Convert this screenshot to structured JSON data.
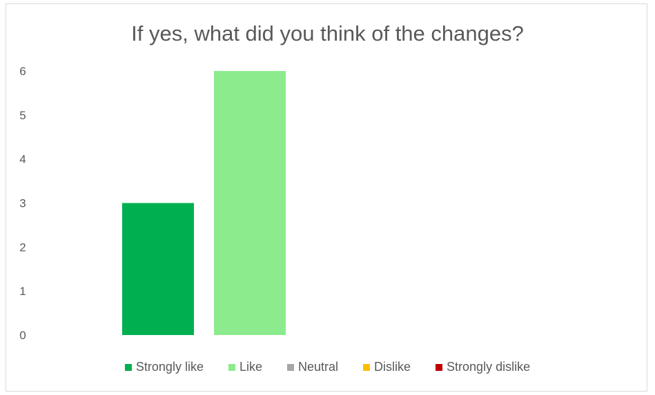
{
  "chart_data": {
    "type": "bar",
    "title": "If yes, what did you think of the changes?",
    "categories": [
      "Strongly like",
      "Like",
      "Neutral",
      "Dislike",
      "Strongly dislike"
    ],
    "values": [
      3,
      6,
      0,
      0,
      0
    ],
    "colors": [
      "#00b050",
      "#8ceb8c",
      "#a6a6a6",
      "#ffc000",
      "#c00000"
    ],
    "ylim": [
      0,
      6
    ],
    "yticks": [
      "0",
      "1",
      "2",
      "3",
      "4",
      "5",
      "6"
    ],
    "grid": false,
    "legend_position": "bottom"
  }
}
